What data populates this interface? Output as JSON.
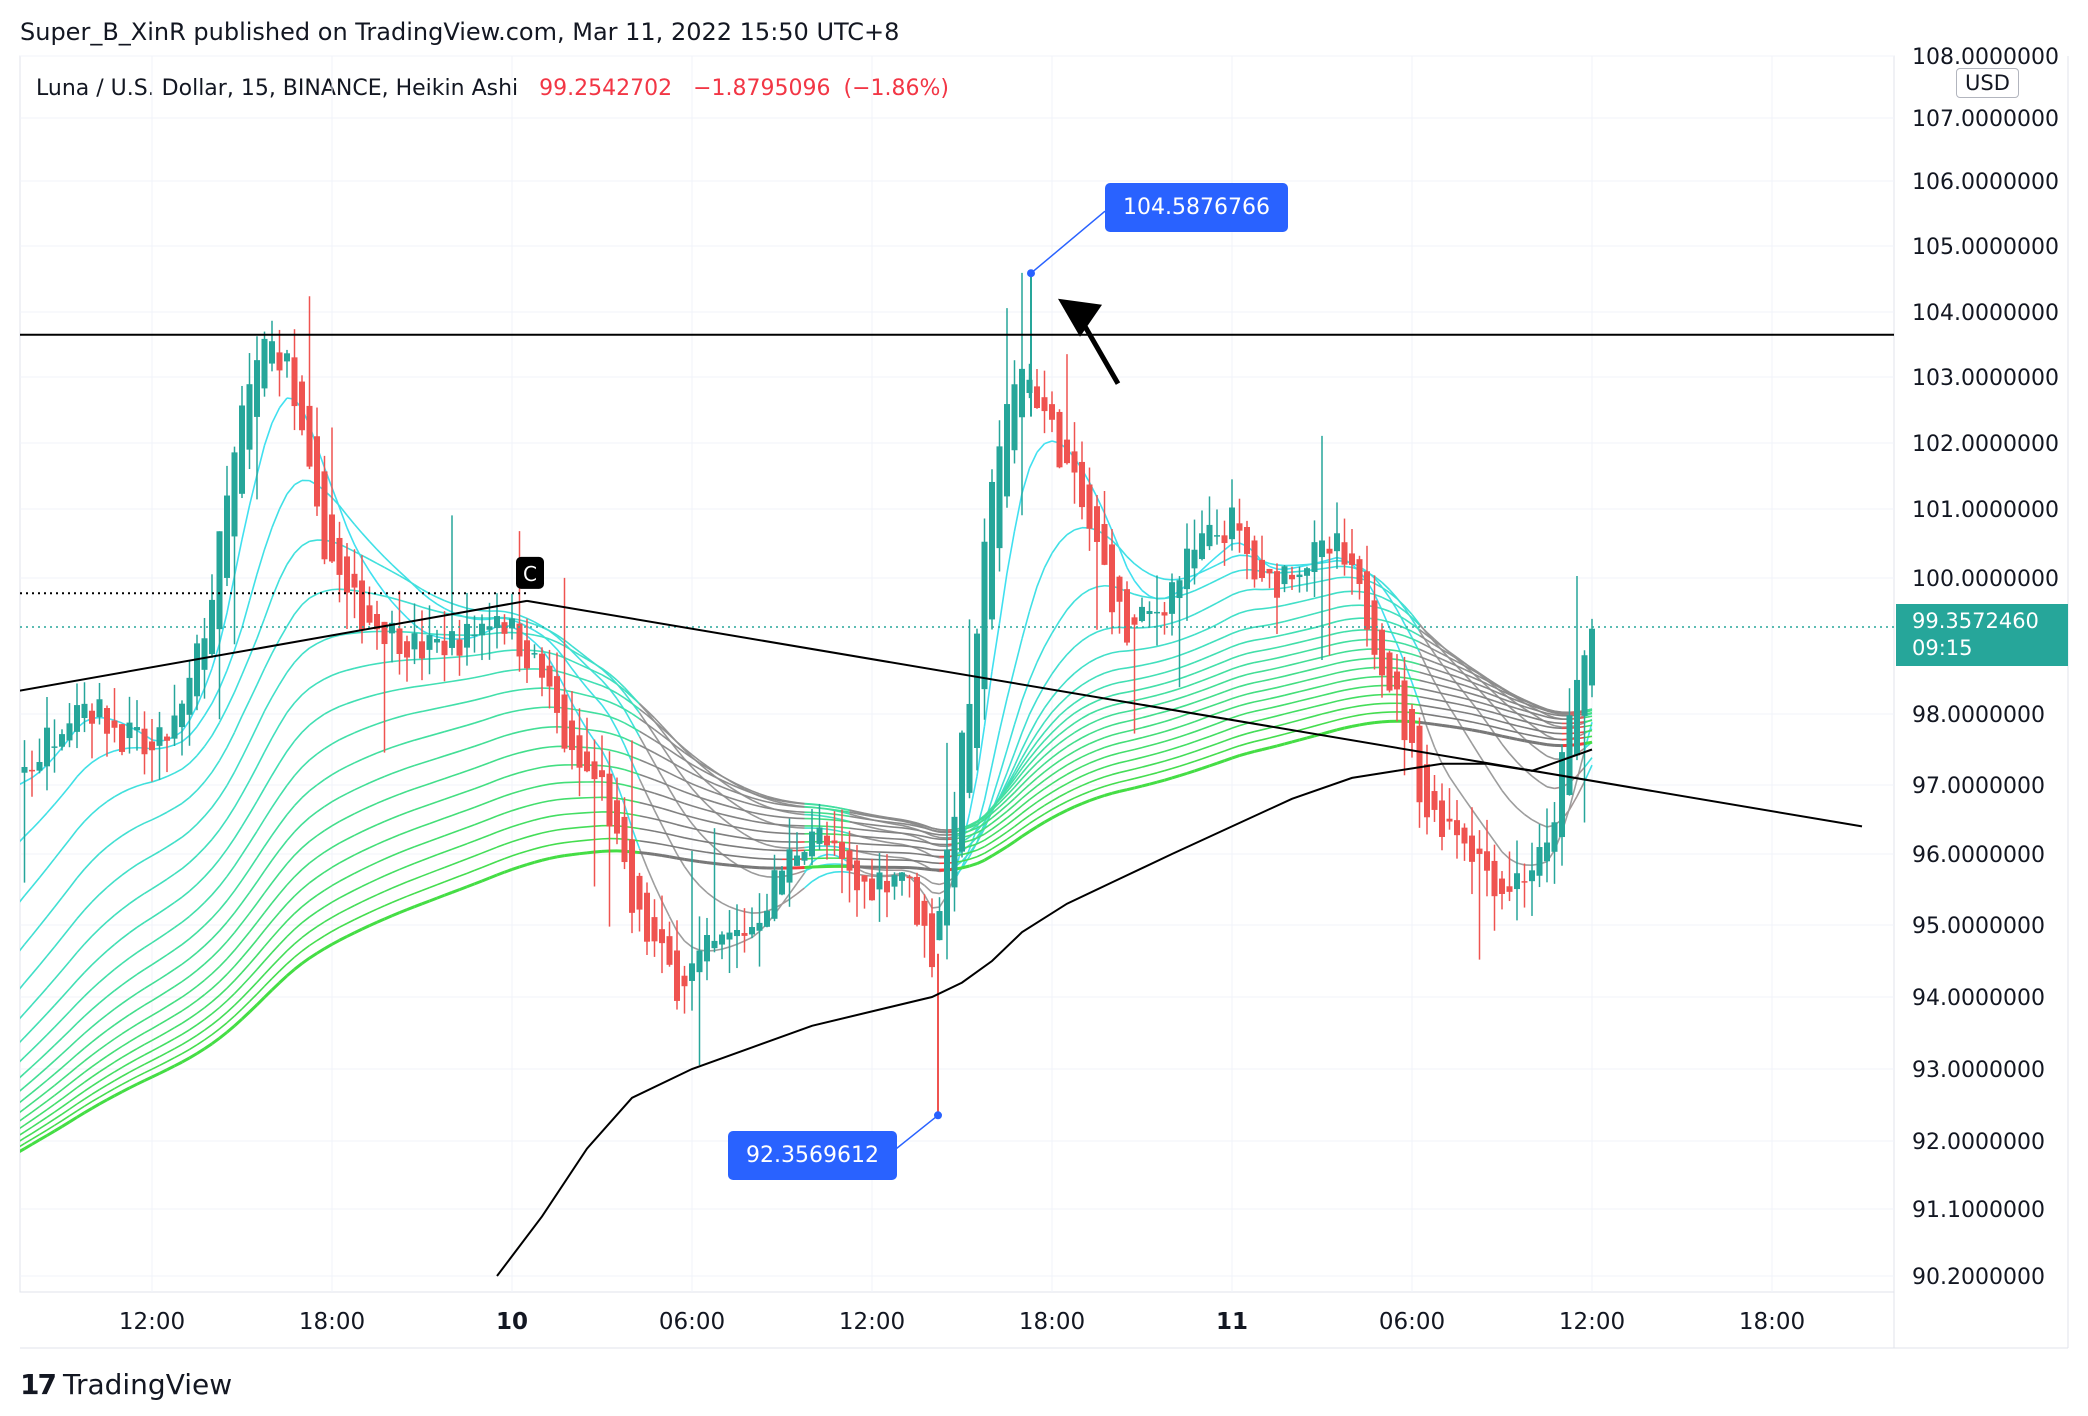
{
  "header": {
    "text": "Super_B_XinR published on TradingView.com, Mar 11, 2022 15:50 UTC+8"
  },
  "legend": {
    "symbol": "Luna / U.S. Dollar, 15, BINANCE, Heikin Ashi",
    "price": "99.2542702",
    "change": "−1.8795096",
    "change_pct": "(−1.86%)"
  },
  "brand": {
    "logo": "17",
    "name": "TradingView"
  },
  "currency": "USD",
  "last_price": {
    "price": "99.3572460",
    "countdown": "09:15"
  },
  "colors": {
    "up": "#26a69a",
    "down": "#ef5350",
    "callout": "#2962ff",
    "ribbon_cyan": "#40e0f0",
    "ribbon_green": "#44dd44",
    "ribbon_gray": "#9e9e9e",
    "ribbon_red": "#ff3030"
  },
  "chart_data": {
    "type": "candlestick",
    "x_ticks": [
      "12:00",
      "18:00",
      "10",
      "06:00",
      "12:00",
      "18:00",
      "11",
      "06:00",
      "12:00",
      "18:00"
    ],
    "y_ticks": [
      "108.0000000",
      "107.0000000",
      "106.0000000",
      "105.0000000",
      "104.0000000",
      "103.0000000",
      "102.0000000",
      "101.0000000",
      "100.0000000",
      "98.0000000",
      "97.0000000",
      "96.0000000",
      "95.0000000",
      "94.0000000",
      "93.0000000",
      "92.0000000",
      "91.1000000",
      "90.2000000"
    ],
    "ylim": [
      90.2,
      108.0
    ],
    "price_path_hours": [
      [
        -1.5,
        89.8
      ],
      [
        0.5,
        91.5
      ],
      [
        1.5,
        93.6
      ],
      [
        2.5,
        93.3
      ],
      [
        3.5,
        93.8
      ],
      [
        4.5,
        96.3
      ],
      [
        5.5,
        97.2
      ],
      [
        6.5,
        97.0
      ],
      [
        8.0,
        97.3
      ],
      [
        9.5,
        98.3
      ],
      [
        10.5,
        97.9
      ],
      [
        12.0,
        97.4
      ],
      [
        13.0,
        98.0
      ],
      [
        14.0,
        99.8
      ],
      [
        15.0,
        102.4
      ],
      [
        15.8,
        103.6
      ],
      [
        16.5,
        103.2
      ],
      [
        17.0,
        102.0
      ],
      [
        17.5,
        100.8
      ],
      [
        18.5,
        99.7
      ],
      [
        19.5,
        99.4
      ],
      [
        21.0,
        99.0
      ],
      [
        22.5,
        99.2
      ],
      [
        23.5,
        99.6
      ],
      [
        25.0,
        98.6
      ],
      [
        26.0,
        97.3
      ],
      [
        27.0,
        97.0
      ],
      [
        28.0,
        95.2
      ],
      [
        29.5,
        94.2
      ],
      [
        30.5,
        94.6
      ],
      [
        32.0,
        95.0
      ],
      [
        33.0,
        95.8
      ],
      [
        34.0,
        96.4
      ],
      [
        35.5,
        95.5
      ],
      [
        37.0,
        95.8
      ],
      [
        38.0,
        94.6
      ],
      [
        38.5,
        96.0
      ],
      [
        39.5,
        99.0
      ],
      [
        40.0,
        101.6
      ],
      [
        41.0,
        103.2
      ],
      [
        41.8,
        102.4
      ],
      [
        42.5,
        101.6
      ],
      [
        43.5,
        100.4
      ],
      [
        44.5,
        99.2
      ],
      [
        45.5,
        99.6
      ],
      [
        47.0,
        100.5
      ],
      [
        48.0,
        100.8
      ],
      [
        49.0,
        99.8
      ],
      [
        50.0,
        100.2
      ],
      [
        51.5,
        100.4
      ],
      [
        52.5,
        99.5
      ],
      [
        53.5,
        98.2
      ],
      [
        54.5,
        96.6
      ],
      [
        55.5,
        96.4
      ],
      [
        57.0,
        95.5
      ],
      [
        58.5,
        96.0
      ],
      [
        59.5,
        98.5
      ],
      [
        60.0,
        99.3
      ]
    ],
    "moving_average_200": [
      [
        23.5,
        90.2
      ],
      [
        25.0,
        91.0
      ],
      [
        26.5,
        91.9
      ],
      [
        28.0,
        92.6
      ],
      [
        30.0,
        93.0
      ],
      [
        32.0,
        93.3
      ],
      [
        34.0,
        93.6
      ],
      [
        36.0,
        93.8
      ],
      [
        38.0,
        94.0
      ],
      [
        39.0,
        94.2
      ],
      [
        40.0,
        94.5
      ],
      [
        41.0,
        94.9
      ],
      [
        42.5,
        95.3
      ],
      [
        44.0,
        95.6
      ],
      [
        46.0,
        96.0
      ],
      [
        48.0,
        96.4
      ],
      [
        50.0,
        96.8
      ],
      [
        52.0,
        97.1
      ],
      [
        53.5,
        97.2
      ],
      [
        55.0,
        97.3
      ],
      [
        56.5,
        97.3
      ],
      [
        58.0,
        97.2
      ],
      [
        60.0,
        97.5
      ]
    ],
    "horizontal_line": 103.65,
    "dotted_line": 99.8,
    "trendline_ascending": [
      [
        -3.5,
        97.5
      ],
      [
        24.5,
        99.7
      ]
    ],
    "trendline_descending": [
      [
        24.5,
        99.7
      ],
      [
        69.0,
        96.4
      ]
    ],
    "annotations": [
      {
        "text": "104.5876766",
        "x_hours": 41.3,
        "price": 104.5876766
      },
      {
        "text": "92.3569612",
        "x_hours": 38.2,
        "price": 92.3569612
      }
    ],
    "marker": {
      "text": "C",
      "x_hours": 24.6,
      "price": 99.7
    }
  }
}
